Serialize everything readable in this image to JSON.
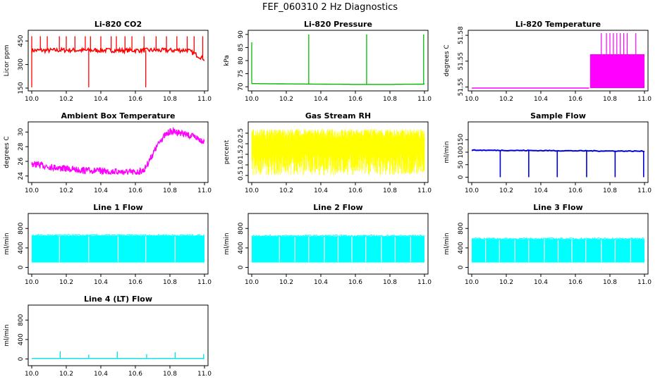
{
  "page_title": "FEF_060310  2 Hz Diagnostics",
  "x_ticks": [
    "10.0",
    "10.2",
    "10.4",
    "10.6",
    "10.8",
    "11.0"
  ],
  "chart_data": [
    {
      "type": "line",
      "title": "Li-820 CO2",
      "ylabel": "Licor ppm",
      "xlim": [
        10.0,
        11.0
      ],
      "ylim": [
        150,
        500
      ],
      "yticks": [
        "150",
        "300",
        "450"
      ],
      "color": "#ff0000",
      "style": "noisy-spikes",
      "series": [
        {
          "x": [
            10.0,
            10.1,
            10.2,
            10.3,
            10.4,
            10.5,
            10.6,
            10.7,
            10.8,
            10.9,
            11.0
          ],
          "values": [
            390,
            390,
            392,
            390,
            391,
            390,
            390,
            391,
            390,
            392,
            335
          ]
        }
      ],
      "spikes_up": [
        10.0,
        10.05,
        10.09,
        10.16,
        10.2,
        10.25,
        10.31,
        10.34,
        10.4,
        10.46,
        10.49,
        10.54,
        10.58,
        10.65,
        10.72,
        10.78,
        10.84,
        10.9,
        10.94,
        10.99
      ],
      "spike_up_value": 480,
      "spikes_down": [
        10.0,
        10.33,
        10.66
      ],
      "spike_down_value": 155
    },
    {
      "type": "line",
      "title": "Li-820 Pressure",
      "ylabel": "kPa",
      "xlim": [
        10.0,
        11.0
      ],
      "ylim": [
        69.5,
        90.5
      ],
      "yticks": [
        "70",
        "75",
        "80",
        "85",
        "90"
      ],
      "color": "#00bb00",
      "style": "flat-spikes",
      "series": [
        {
          "x": [
            10.0,
            10.2,
            10.4,
            10.6,
            10.8,
            11.0
          ],
          "values": [
            71.2,
            71.1,
            71.0,
            70.9,
            70.9,
            71.0
          ]
        }
      ],
      "spikes": [
        {
          "x": 10.0,
          "value": 87
        },
        {
          "x": 10.33,
          "value": 90
        },
        {
          "x": 10.665,
          "value": 90
        },
        {
          "x": 10.995,
          "value": 90
        }
      ]
    },
    {
      "type": "line",
      "title": "Li-820 Temperature",
      "ylabel": "degrees C",
      "xlim": [
        10.0,
        11.0
      ],
      "ylim": [
        51.53,
        51.595
      ],
      "yticks": [
        "51.55",
        "51.55",
        "51.58"
      ],
      "color": "#ff00ff",
      "style": "step-band",
      "series": [
        {
          "x": [
            10.0,
            10.68,
            10.68,
            11.0
          ],
          "values": [
            51.53,
            51.53,
            51.57,
            51.57
          ]
        }
      ],
      "band": {
        "from": 10.685,
        "to": 11.0,
        "low": 51.53,
        "high": 51.57
      },
      "spikes": [
        10.75,
        10.78,
        10.8,
        10.82,
        10.84,
        10.86,
        10.88,
        10.9,
        10.95
      ],
      "spike_value": 51.595
    },
    {
      "type": "line",
      "title": "Ambient Box Temperature",
      "ylabel": "degrees C",
      "xlim": [
        10.0,
        11.0
      ],
      "ylim": [
        23.5,
        31.0
      ],
      "yticks": [
        "24",
        "26",
        "28",
        "30"
      ],
      "color": "#ff00ff",
      "style": "noisy-line",
      "noise": 0.45,
      "series": [
        {
          "x": [
            10.0,
            10.1,
            10.2,
            10.3,
            10.4,
            10.5,
            10.6,
            10.65,
            10.7,
            10.75,
            10.8,
            10.85,
            10.9,
            10.95,
            11.0
          ],
          "values": [
            26.0,
            25.6,
            25.3,
            25.1,
            25.0,
            24.9,
            24.8,
            25.1,
            27.3,
            29.4,
            30.4,
            30.3,
            29.9,
            29.6,
            29.0
          ]
        }
      ]
    },
    {
      "type": "line",
      "title": "Gas Stream RH",
      "ylabel": "percent",
      "xlim": [
        10.0,
        11.0
      ],
      "ylim": [
        0.3,
        2.9
      ],
      "yticks": [
        "0.5",
        "1.0",
        "1.5",
        "2.0",
        "2.5"
      ],
      "color": "#ffff00",
      "style": "dense-band",
      "band": {
        "low": 0.5,
        "high": 2.7,
        "core_low": 1.5,
        "core_high": 2.2
      }
    },
    {
      "type": "line",
      "title": "Sample Flow",
      "ylabel": "ml/min",
      "xlim": [
        10.0,
        11.0
      ],
      "ylim": [
        -10,
        210
      ],
      "yticks": [
        "0",
        "50",
        "100",
        "150"
      ],
      "color": "#0000dd",
      "style": "flat-dips",
      "series": [
        {
          "x": [
            10.0,
            11.0
          ],
          "values": [
            108,
            104
          ]
        }
      ],
      "dips": [
        10.165,
        10.33,
        10.495,
        10.665,
        10.83,
        10.995
      ],
      "dip_value": 0
    },
    {
      "type": "line",
      "title": "Line 1 Flow",
      "ylabel": "ml/min",
      "xlim": [
        10.0,
        11.0
      ],
      "ylim": [
        -80,
        1050
      ],
      "yticks": [
        "0",
        "400",
        "800"
      ],
      "color": "#00ffff",
      "style": "dense-band-gaps",
      "band": {
        "low": 100,
        "high": 650
      },
      "gaps": [
        10.16,
        10.33,
        10.5,
        10.66,
        10.83
      ]
    },
    {
      "type": "line",
      "title": "Line 2 Flow",
      "ylabel": "ml/min",
      "xlim": [
        10.0,
        11.0
      ],
      "ylim": [
        -80,
        1050
      ],
      "yticks": [
        "0",
        "400",
        "800"
      ],
      "color": "#00ffff",
      "style": "dense-band-gaps",
      "band": {
        "low": 100,
        "high": 640
      },
      "gaps": [
        10.16,
        10.25,
        10.33,
        10.42,
        10.5,
        10.58,
        10.66,
        10.75,
        10.83,
        10.92
      ]
    },
    {
      "type": "line",
      "title": "Line 3 Flow",
      "ylabel": "ml/min",
      "xlim": [
        10.0,
        11.0
      ],
      "ylim": [
        -80,
        1050
      ],
      "yticks": [
        "0",
        "400",
        "800"
      ],
      "color": "#00ffff",
      "style": "dense-band-gaps",
      "band": {
        "low": 100,
        "high": 580
      },
      "gaps": [
        10.08,
        10.16,
        10.25,
        10.33,
        10.42,
        10.5,
        10.58,
        10.66,
        10.75,
        10.83,
        10.92
      ]
    },
    {
      "type": "line",
      "title": "Line 4 (LT) Flow",
      "ylabel": "ml/min",
      "xlim": [
        10.0,
        11.0
      ],
      "ylim": [
        -80,
        1050
      ],
      "yticks": [
        "0",
        "400",
        "800"
      ],
      "color": "#00e0e0",
      "style": "flat-spikes",
      "series": [
        {
          "x": [
            10.0,
            11.0
          ],
          "values": [
            10,
            10
          ]
        }
      ],
      "spikes": [
        {
          "x": 10.165,
          "value": 160
        },
        {
          "x": 10.33,
          "value": 90
        },
        {
          "x": 10.495,
          "value": 150
        },
        {
          "x": 10.665,
          "value": 100
        },
        {
          "x": 10.83,
          "value": 140
        },
        {
          "x": 10.995,
          "value": 100
        }
      ]
    }
  ]
}
